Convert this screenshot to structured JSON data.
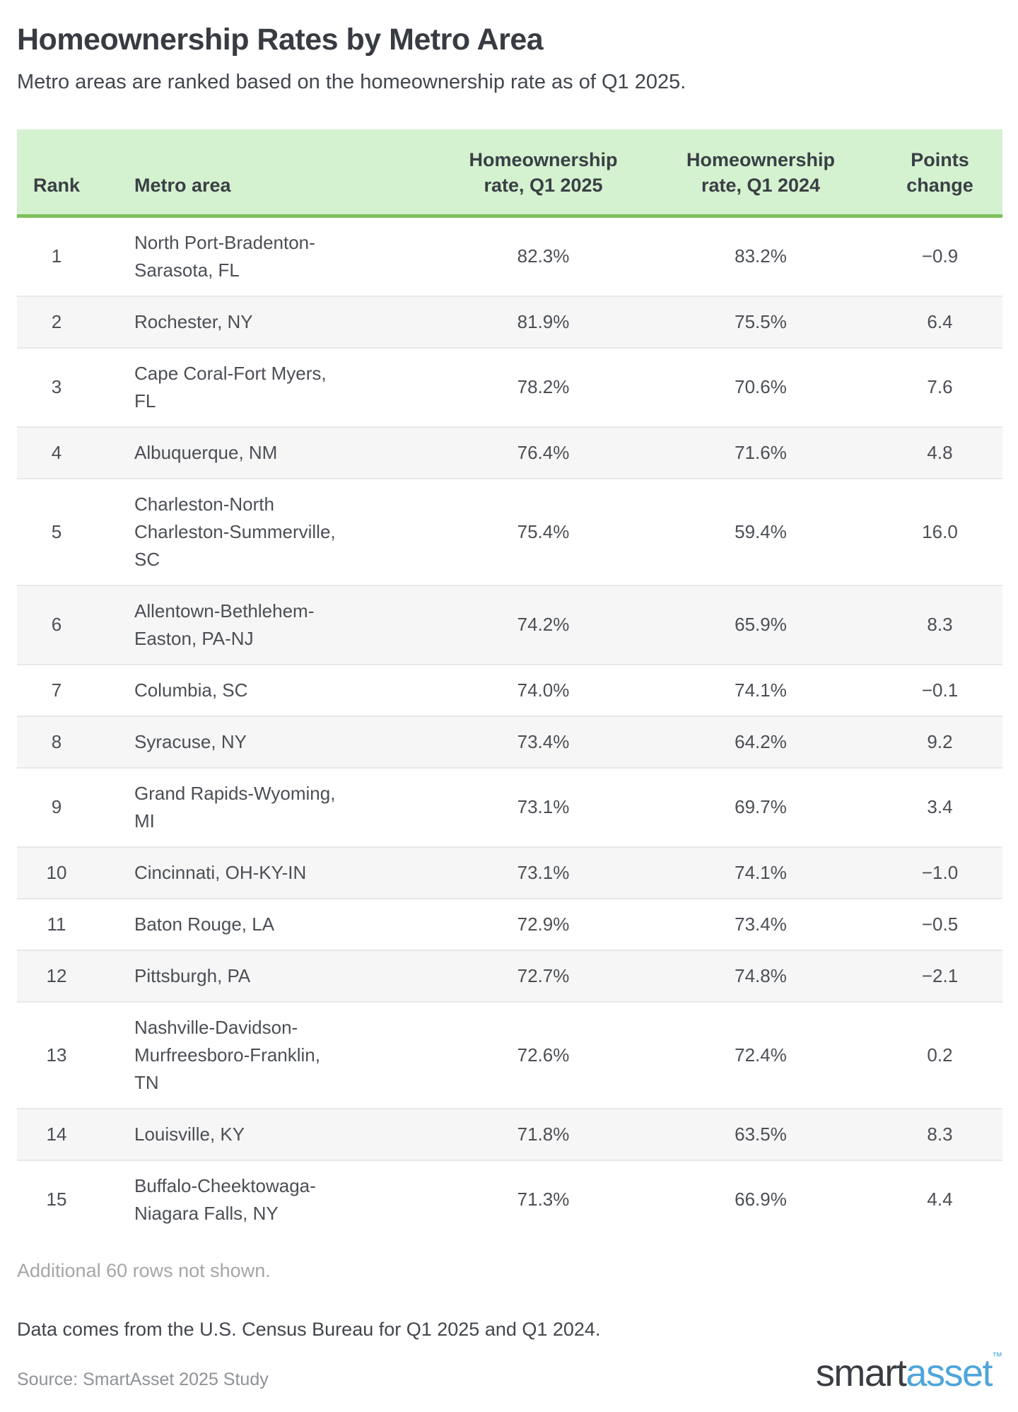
{
  "page": {
    "title": "Homeownership Rates by Metro Area",
    "subtitle": "Metro areas are ranked based on the homeownership rate as of Q1 2025."
  },
  "table": {
    "columns": {
      "rank": "Rank",
      "metro": "Metro area",
      "rate_2025": "Homeownership rate, Q1 2025",
      "rate_2024": "Homeownership rate, Q1 2024",
      "points_change": "Points change"
    },
    "rows": [
      {
        "rank": "1",
        "metro": "North Port-Bradenton-Sarasota, FL",
        "rate_2025": "82.3%",
        "rate_2024": "83.2%",
        "points_change": "−0.9"
      },
      {
        "rank": "2",
        "metro": "Rochester, NY",
        "rate_2025": "81.9%",
        "rate_2024": "75.5%",
        "points_change": "6.4"
      },
      {
        "rank": "3",
        "metro": "Cape Coral-Fort Myers, FL",
        "rate_2025": "78.2%",
        "rate_2024": "70.6%",
        "points_change": "7.6"
      },
      {
        "rank": "4",
        "metro": "Albuquerque, NM",
        "rate_2025": "76.4%",
        "rate_2024": "71.6%",
        "points_change": "4.8"
      },
      {
        "rank": "5",
        "metro": "Charleston-North Charleston-Summerville, SC",
        "rate_2025": "75.4%",
        "rate_2024": "59.4%",
        "points_change": "16.0"
      },
      {
        "rank": "6",
        "metro": "Allentown-Bethlehem-Easton, PA-NJ",
        "rate_2025": "74.2%",
        "rate_2024": "65.9%",
        "points_change": "8.3"
      },
      {
        "rank": "7",
        "metro": "Columbia, SC",
        "rate_2025": "74.0%",
        "rate_2024": "74.1%",
        "points_change": "−0.1"
      },
      {
        "rank": "8",
        "metro": "Syracuse, NY",
        "rate_2025": "73.4%",
        "rate_2024": "64.2%",
        "points_change": "9.2"
      },
      {
        "rank": "9",
        "metro": "Grand Rapids-Wyoming, MI",
        "rate_2025": "73.1%",
        "rate_2024": "69.7%",
        "points_change": "3.4"
      },
      {
        "rank": "10",
        "metro": "Cincinnati, OH-KY-IN",
        "rate_2025": "73.1%",
        "rate_2024": "74.1%",
        "points_change": "−1.0"
      },
      {
        "rank": "11",
        "metro": "Baton Rouge, LA",
        "rate_2025": "72.9%",
        "rate_2024": "73.4%",
        "points_change": "−0.5"
      },
      {
        "rank": "12",
        "metro": "Pittsburgh, PA",
        "rate_2025": "72.7%",
        "rate_2024": "74.8%",
        "points_change": "−2.1"
      },
      {
        "rank": "13",
        "metro": "Nashville-Davidson-Murfreesboro-Franklin, TN",
        "rate_2025": "72.6%",
        "rate_2024": "72.4%",
        "points_change": "0.2"
      },
      {
        "rank": "14",
        "metro": "Louisville, KY",
        "rate_2025": "71.8%",
        "rate_2024": "63.5%",
        "points_change": "8.3"
      },
      {
        "rank": "15",
        "metro": "Buffalo-Cheektowaga-Niagara Falls, NY",
        "rate_2025": "71.3%",
        "rate_2024": "66.9%",
        "points_change": "4.4"
      }
    ]
  },
  "footer": {
    "rows_note": "Additional 60 rows not shown.",
    "data_note": "Data comes from the U.S. Census Bureau for Q1 2025 and Q1 2024.",
    "source_note": "Source: SmartAsset 2025 Study",
    "logo": {
      "part1": "smart",
      "part2": "asset",
      "tm": "™"
    }
  },
  "colors": {
    "header_bg": "#d5f2d0",
    "header_border_green": "#7cc05a",
    "alt_row_bg": "#f6f6f6",
    "row_divider": "#e8e8e8",
    "title_text": "#383c42",
    "body_text": "#4b4f55",
    "muted_text": "#a6a6a6",
    "source_text": "#8f9296",
    "logo_dark": "#3a3e43",
    "logo_blue": "#4ea5db"
  },
  "chart_data": {
    "type": "table",
    "title": "Homeownership Rates by Metro Area",
    "subtitle": "Metro areas are ranked based on the homeownership rate as of Q1 2025.",
    "columns": [
      "Rank",
      "Metro area",
      "Homeownership rate, Q1 2025",
      "Homeownership rate, Q1 2024",
      "Points change"
    ],
    "rows": [
      [
        1,
        "North Port-Bradenton-Sarasota, FL",
        82.3,
        83.2,
        -0.9
      ],
      [
        2,
        "Rochester, NY",
        81.9,
        75.5,
        6.4
      ],
      [
        3,
        "Cape Coral-Fort Myers, FL",
        78.2,
        70.6,
        7.6
      ],
      [
        4,
        "Albuquerque, NM",
        76.4,
        71.6,
        4.8
      ],
      [
        5,
        "Charleston-North Charleston-Summerville, SC",
        75.4,
        59.4,
        16.0
      ],
      [
        6,
        "Allentown-Bethlehem-Easton, PA-NJ",
        74.2,
        65.9,
        8.3
      ],
      [
        7,
        "Columbia, SC",
        74.0,
        74.1,
        -0.1
      ],
      [
        8,
        "Syracuse, NY",
        73.4,
        64.2,
        9.2
      ],
      [
        9,
        "Grand Rapids-Wyoming, MI",
        73.1,
        69.7,
        3.4
      ],
      [
        10,
        "Cincinnati, OH-KY-IN",
        73.1,
        74.1,
        -1.0
      ],
      [
        11,
        "Baton Rouge, LA",
        72.9,
        73.4,
        -0.5
      ],
      [
        12,
        "Pittsburgh, PA",
        72.7,
        74.8,
        -2.1
      ],
      [
        13,
        "Nashville-Davidson-Murfreesboro-Franklin, TN",
        72.6,
        72.4,
        0.2
      ],
      [
        14,
        "Louisville, KY",
        71.8,
        63.5,
        8.3
      ],
      [
        15,
        "Buffalo-Cheektowaga-Niagara Falls, NY",
        71.3,
        66.9,
        4.4
      ]
    ],
    "rate_unit": "%",
    "note": "Additional 60 rows not shown."
  }
}
